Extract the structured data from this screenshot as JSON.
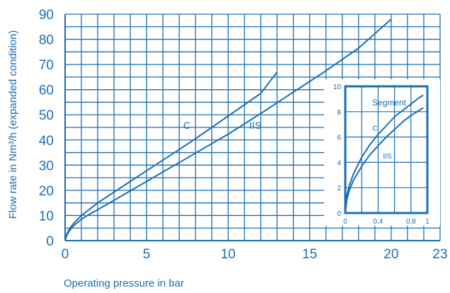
{
  "chart_data": [
    {
      "type": "line",
      "xlabel": "Operating pressure in bar",
      "ylabel": "Flow rate in  Nm³/h (expanded condition)",
      "xlim": [
        0,
        23
      ],
      "ylim": [
        0,
        90
      ],
      "x_ticks": [
        0,
        5,
        10,
        15,
        20,
        23
      ],
      "x_tick_labels": [
        "0",
        "5",
        "10",
        "15",
        "20",
        "23"
      ],
      "y_ticks": [
        0,
        10,
        20,
        30,
        40,
        50,
        60,
        70,
        80,
        90
      ],
      "y_tick_labels": [
        "0",
        "10",
        "20",
        "30",
        "40",
        "50",
        "60",
        "70",
        "80",
        "90"
      ],
      "grid": true,
      "series": [
        {
          "name": "C",
          "x": [
            0,
            0.1,
            0.25,
            0.5,
            1,
            1.5,
            2,
            3,
            4,
            5,
            6,
            7,
            8,
            9,
            10,
            11,
            12,
            13
          ],
          "y": [
            0,
            2.5,
            4.5,
            6.7,
            10,
            12.5,
            15,
            19.3,
            23.5,
            27.8,
            32,
            36.2,
            40.5,
            45,
            49.5,
            54,
            58.5,
            67
          ]
        },
        {
          "name": "IIS",
          "x": [
            0,
            0.1,
            0.25,
            0.5,
            1,
            1.5,
            2,
            3,
            4,
            5,
            6,
            7,
            8,
            10,
            12,
            14,
            16,
            18,
            20
          ],
          "y": [
            0,
            2,
            3.8,
            5.8,
            8.5,
            10.5,
            12.3,
            16,
            19.8,
            23.5,
            27.3,
            31,
            34.8,
            42.3,
            50.5,
            59,
            67.5,
            76.5,
            88
          ]
        }
      ]
    },
    {
      "type": "line",
      "title": "Segment",
      "xlim": [
        0,
        1
      ],
      "ylim": [
        0,
        10
      ],
      "x_ticks": [
        0,
        0.4,
        0.8,
        1
      ],
      "x_tick_labels": [
        "0",
        "0,4",
        "0,8",
        "1"
      ],
      "y_ticks": [
        0,
        2,
        4,
        6,
        8,
        10
      ],
      "y_tick_labels": [
        "0",
        "2",
        "4",
        "6",
        "8",
        "10"
      ],
      "grid": true,
      "series": [
        {
          "name": "C",
          "x": [
            0,
            0.02,
            0.05,
            0.1,
            0.2,
            0.3,
            0.4,
            0.5,
            0.6,
            0.7,
            0.8,
            0.9,
            0.95
          ],
          "y": [
            0,
            1.4,
            2.2,
            3.1,
            4.4,
            5.4,
            6.2,
            6.9,
            7.6,
            8.1,
            8.6,
            9.1,
            9.3
          ]
        },
        {
          "name": "IIS",
          "x": [
            0,
            0.02,
            0.05,
            0.1,
            0.2,
            0.3,
            0.4,
            0.5,
            0.6,
            0.7,
            0.8,
            0.9,
            0.95
          ],
          "y": [
            0,
            1.1,
            1.8,
            2.6,
            3.7,
            4.6,
            5.3,
            6,
            6.6,
            7.2,
            7.7,
            8.1,
            8.3
          ]
        }
      ]
    }
  ]
}
